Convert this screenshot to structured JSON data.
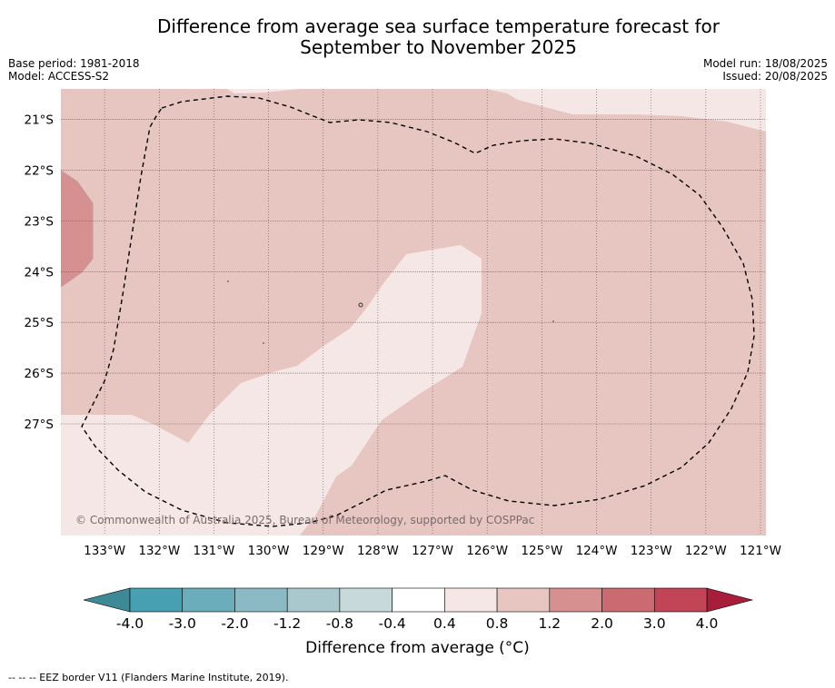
{
  "title": {
    "line1": "Difference from average sea surface temperature forecast for",
    "line2": "September to November 2025"
  },
  "meta_left": {
    "base_period": "Base period: 1981-2018",
    "model": "Model: ACCESS-S2"
  },
  "meta_right": {
    "model_run": "Model run: 18/08/2025",
    "issued": "Issued: 20/08/2025"
  },
  "map": {
    "lon_range": [
      -133.8,
      -120.9
    ],
    "lat_range": [
      -29.2,
      -20.4
    ],
    "lon_ticks": [
      {
        "value": -133,
        "label": "133°W"
      },
      {
        "value": -132,
        "label": "132°W"
      },
      {
        "value": -131,
        "label": "131°W"
      },
      {
        "value": -130,
        "label": "130°W"
      },
      {
        "value": -129,
        "label": "129°W"
      },
      {
        "value": -128,
        "label": "128°W"
      },
      {
        "value": -127,
        "label": "127°W"
      },
      {
        "value": -126,
        "label": "126°W"
      },
      {
        "value": -125,
        "label": "125°W"
      },
      {
        "value": -124,
        "label": "124°W"
      },
      {
        "value": -123,
        "label": "123°W"
      },
      {
        "value": -122,
        "label": "122°W"
      },
      {
        "value": -121,
        "label": "121°W"
      }
    ],
    "lat_ticks": [
      {
        "value": -21,
        "label": "21°S"
      },
      {
        "value": -22,
        "label": "22°S"
      },
      {
        "value": -23,
        "label": "23°S"
      },
      {
        "value": -24,
        "label": "24°S"
      },
      {
        "value": -25,
        "label": "25°S"
      },
      {
        "value": -26,
        "label": "26°S"
      },
      {
        "value": -27,
        "label": "27°S"
      }
    ],
    "copyright": "© Commonwealth of Australia 2025, Bureau of Meteorology, supported by COSPPac",
    "border_style": "dashed black EEZ outline"
  },
  "colorbar": {
    "title": "Difference from average (°C)",
    "boundaries": [
      "-4.0",
      "-3.0",
      "-2.0",
      "-1.2",
      "-0.8",
      "-0.4",
      "0.4",
      "0.8",
      "1.2",
      "2.0",
      "3.0",
      "4.0"
    ],
    "colors": [
      "#47a0b2",
      "#6badbb",
      "#8bb9c4",
      "#a8c8cd",
      "#c8d9dc",
      "#ffffff",
      "#f4e7e6",
      "#e7c6c2",
      "#d6908f",
      "#cb6b71",
      "#c14557"
    ],
    "under_color": "#3c8a96",
    "over_color": "#a71d3a"
  },
  "footer": "-- -- -- EEZ border V11 (Flanders Marine Institute, 2019)."
}
